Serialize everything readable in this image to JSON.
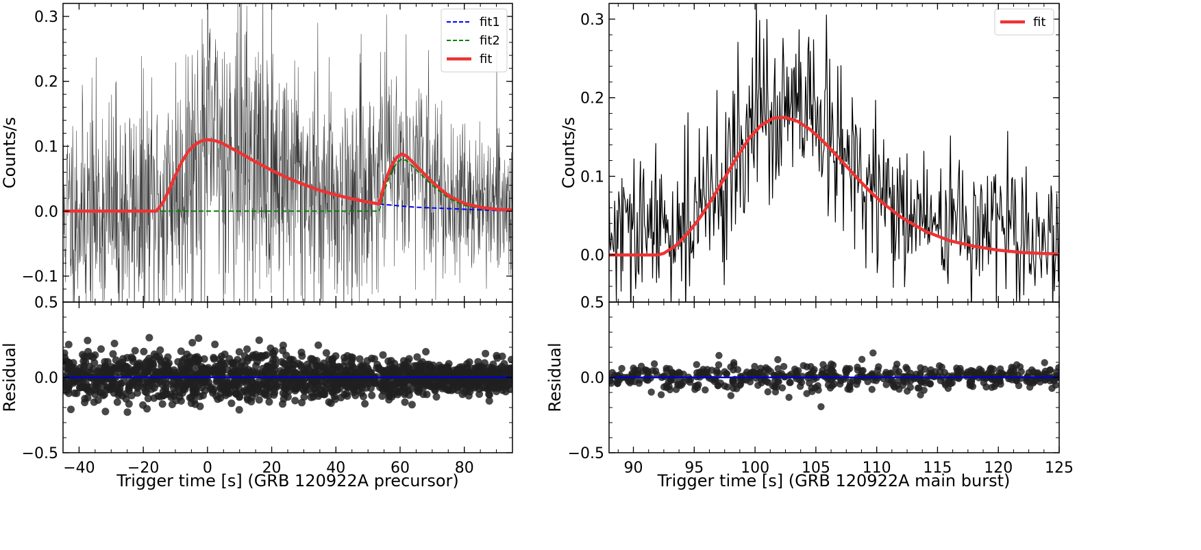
{
  "chart_data": [
    {
      "id": "precursor",
      "type": "line",
      "xlabel": "Trigger time [s] (GRB 120922A precursor)",
      "ylabel": "Counts/s",
      "xlim": [
        -45,
        95
      ],
      "ylim": [
        -0.14,
        0.32
      ],
      "xticks": [
        -40,
        -20,
        0,
        20,
        40,
        60,
        80
      ],
      "xtick_labels": [
        "−40",
        "−20",
        "0",
        "20",
        "40",
        "60",
        "80"
      ],
      "yticks": [
        -0.1,
        0.0,
        0.1,
        0.2,
        0.3
      ],
      "ytick_labels": [
        "−0.1",
        "0.0",
        "0.1",
        "0.2",
        "0.3"
      ],
      "top_ytick_label": "0.5",
      "legend": {
        "position": "upper-right",
        "entries": [
          {
            "label": "fit1",
            "color": "#0000ff",
            "style": "dashed"
          },
          {
            "label": "fit2",
            "color": "#008000",
            "style": "dashed"
          },
          {
            "label": "fit",
            "color": "#ee3333",
            "style": "solid"
          }
        ]
      },
      "series": [
        {
          "name": "fit",
          "color": "#ee3333",
          "x": [
            -45,
            -16,
            -14,
            -12,
            -10,
            -8,
            -6,
            -4,
            -2,
            0,
            2,
            4,
            6,
            10,
            15,
            20,
            25,
            30,
            35,
            40,
            45,
            50,
            53.5,
            55,
            57,
            59,
            60.5,
            62,
            65,
            70,
            75,
            80,
            85,
            90,
            95
          ],
          "y": [
            0.0,
            0.0,
            0.012,
            0.032,
            0.055,
            0.076,
            0.092,
            0.102,
            0.108,
            0.11,
            0.109,
            0.106,
            0.101,
            0.09,
            0.076,
            0.063,
            0.051,
            0.041,
            0.032,
            0.025,
            0.019,
            0.014,
            0.011,
            0.04,
            0.067,
            0.083,
            0.088,
            0.085,
            0.07,
            0.045,
            0.024,
            0.012,
            0.006,
            0.003,
            0.002
          ]
        },
        {
          "name": "fit1",
          "color": "#0000ff",
          "x": [
            53.5,
            60,
            65,
            70,
            75,
            80,
            85,
            90,
            95
          ],
          "y": [
            0.011,
            0.008,
            0.006,
            0.005,
            0.004,
            0.003,
            0.002,
            0.001,
            0.001
          ]
        },
        {
          "name": "fit2",
          "color": "#008000",
          "x": [
            -45,
            53.5,
            55,
            57,
            59,
            60.5,
            62,
            65,
            70,
            75,
            80,
            85,
            90,
            95
          ],
          "y": [
            0.0,
            0.0,
            0.03,
            0.058,
            0.075,
            0.08,
            0.078,
            0.064,
            0.04,
            0.02,
            0.009,
            0.004,
            0.002,
            0.001
          ]
        }
      ],
      "data_envelope": {
        "x": [
          -45,
          -30,
          -15,
          0,
          15,
          30,
          45,
          60,
          75,
          95
        ],
        "center": [
          0.0,
          0.0,
          0.0,
          0.11,
          0.076,
          0.041,
          0.019,
          0.088,
          0.024,
          0.002
        ],
        "spread": [
          0.08,
          0.09,
          0.1,
          0.11,
          0.11,
          0.1,
          0.09,
          0.07,
          0.06,
          0.05
        ]
      },
      "residual": {
        "ylabel": "Residual",
        "ylim": [
          -0.5,
          0.5
        ],
        "yticks": [
          -0.5,
          0.0,
          0.5
        ],
        "ytick_labels": [
          "−0.5",
          "0.0",
          ""
        ],
        "zero_line_color": "#0000cc",
        "spread_x": [
          -45,
          0,
          50,
          95
        ],
        "spread_y": [
          0.08,
          0.09,
          0.07,
          0.05
        ]
      }
    },
    {
      "id": "main",
      "type": "line",
      "xlabel": "Trigger time [s] (GRB 120922A main burst)",
      "ylabel": "Counts/s",
      "xlim": [
        88,
        125
      ],
      "ylim": [
        -0.06,
        0.32
      ],
      "xticks": [
        90,
        95,
        100,
        105,
        110,
        115,
        120,
        125
      ],
      "xtick_labels": [
        "90",
        "95",
        "100",
        "105",
        "110",
        "115",
        "120",
        "125"
      ],
      "yticks": [
        0.0,
        0.1,
        0.2,
        0.3
      ],
      "ytick_labels": [
        "0.0",
        "0.1",
        "0.2",
        "0.3"
      ],
      "top_ytick_label": "0.5",
      "legend": {
        "position": "upper-right",
        "entries": [
          {
            "label": "fit",
            "color": "#ee3333",
            "style": "solid"
          }
        ]
      },
      "series": [
        {
          "name": "fit",
          "color": "#ee3333",
          "x": [
            88,
            92,
            92.5,
            93.5,
            94.5,
            95.5,
            96.5,
            97.5,
            98.5,
            99.5,
            100.5,
            101.5,
            102.5,
            103.5,
            104.5,
            105.5,
            106.5,
            107.5,
            108.5,
            109.5,
            110.5,
            112,
            114,
            116,
            118,
            120,
            122,
            125
          ],
          "y": [
            0.0,
            0.0,
            0.002,
            0.012,
            0.028,
            0.048,
            0.072,
            0.098,
            0.124,
            0.148,
            0.165,
            0.174,
            0.175,
            0.17,
            0.16,
            0.146,
            0.13,
            0.113,
            0.096,
            0.08,
            0.066,
            0.048,
            0.03,
            0.018,
            0.011,
            0.006,
            0.003,
            0.001
          ]
        }
      ],
      "data_envelope": {
        "x": [
          88,
          92,
          96,
          100,
          102,
          105,
          110,
          115,
          120,
          125
        ],
        "center": [
          0.02,
          0.03,
          0.06,
          0.17,
          0.18,
          0.17,
          0.07,
          0.04,
          0.03,
          0.02
        ],
        "spread": [
          0.05,
          0.05,
          0.05,
          0.06,
          0.06,
          0.06,
          0.05,
          0.04,
          0.04,
          0.04
        ]
      },
      "residual": {
        "ylabel": "Residual",
        "ylim": [
          -0.5,
          0.5
        ],
        "yticks": [
          -0.5,
          0.0,
          0.5
        ],
        "ytick_labels": [
          "−0.5",
          "0.0",
          ""
        ],
        "zero_line_color": "#0000cc",
        "spread_x": [
          88,
          100,
          110,
          125
        ],
        "spread_y": [
          0.04,
          0.05,
          0.05,
          0.03
        ]
      }
    }
  ]
}
